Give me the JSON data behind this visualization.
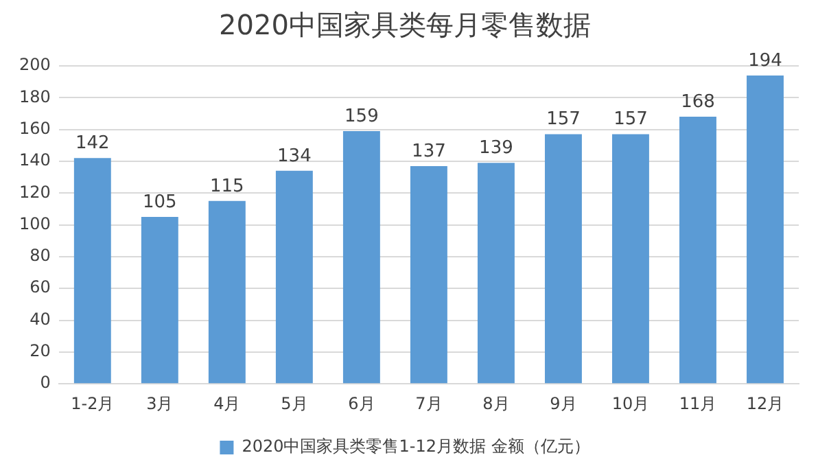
{
  "chart_data": {
    "type": "bar",
    "title": "2020中国家具类每月零售数据",
    "categories": [
      "1-2月",
      "3月",
      "4月",
      "5月",
      "6月",
      "7月",
      "8月",
      "9月",
      "10月",
      "11月",
      "12月"
    ],
    "series": [
      {
        "name": "2020中国家具类零售1-12月数据 金额（亿元）",
        "color": "#5b9bd5",
        "values": [
          142,
          105,
          115,
          134,
          159,
          137,
          139,
          157,
          157,
          168,
          194
        ]
      }
    ],
    "ylim": [
      0,
      200
    ],
    "yticks": [
      0,
      20,
      40,
      60,
      80,
      100,
      120,
      140,
      160,
      180,
      200
    ],
    "grid": "y",
    "legend": "bottom",
    "data_labels": true
  }
}
